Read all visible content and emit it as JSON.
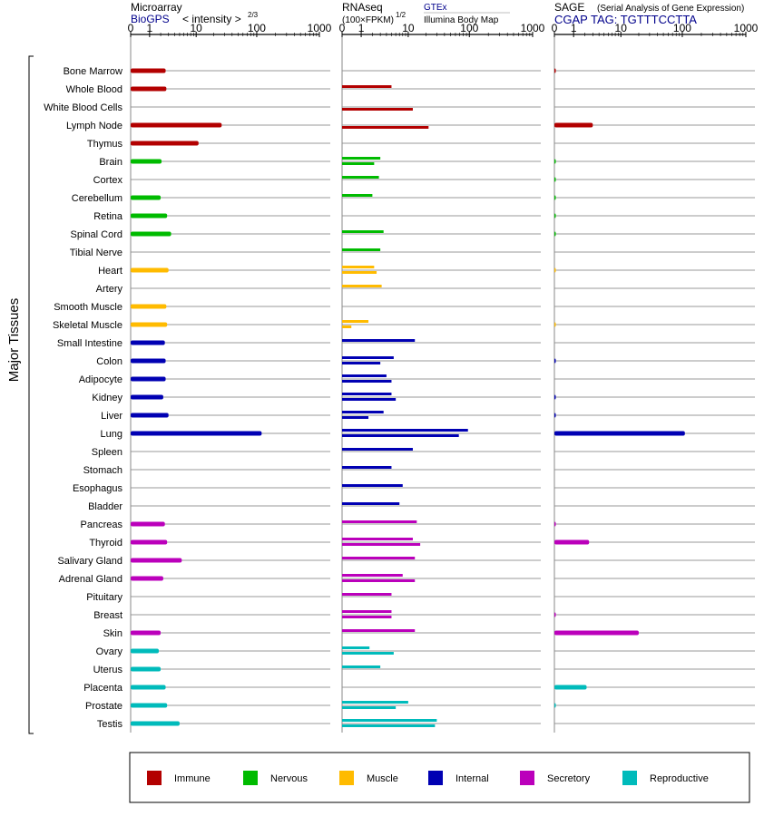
{
  "chart_data": {
    "type": "bar",
    "panel_headers": {
      "microarray": {
        "title": "Microarray",
        "source": "BioGPS",
        "scale": "< intensity >",
        "scale_exp": "2/3"
      },
      "rnaseq": {
        "title": "RNAseq",
        "scale": "(100×FPKM)",
        "scale_exp": "1/2",
        "source1": "GTEx",
        "source2": "Illumina Body Map"
      },
      "sage": {
        "title": "SAGE",
        "subtitle": "(Serial Analysis of Gene Expression)",
        "tag": "CGAP TAG: TGTTTCCTTA"
      }
    },
    "ticks": [
      "0",
      "1",
      "10",
      "100",
      "1000"
    ],
    "ylabel": "Major Tissues",
    "colors": {
      "Immune": "#b30000",
      "Nervous": "#00bb00",
      "Muscle": "#ffbb00",
      "Internal": "#0000b3",
      "Secretory": "#bb00bb",
      "Reproductive": "#00bbbb"
    },
    "legend": [
      "Immune",
      "Nervous",
      "Muscle",
      "Internal",
      "Secretory",
      "Reproductive"
    ],
    "tissues": [
      {
        "name": "Bone Marrow",
        "group": "Immune",
        "microarray": 2.6,
        "gtex": null,
        "ibm": null,
        "sage": 0.02
      },
      {
        "name": "Whole Blood",
        "group": "Immune",
        "microarray": 2.7,
        "gtex": 5,
        "ibm": null,
        "sage": null
      },
      {
        "name": "White Blood Cells",
        "group": "Immune",
        "microarray": null,
        "gtex": null,
        "ibm": 12,
        "sage": null
      },
      {
        "name": "Lymph Node",
        "group": "Immune",
        "microarray": 27,
        "gtex": null,
        "ibm": 22,
        "sage": 3
      },
      {
        "name": "Thymus",
        "group": "Immune",
        "microarray": 11,
        "gtex": null,
        "ibm": null,
        "sage": null
      },
      {
        "name": "Brain",
        "group": "Nervous",
        "microarray": 2.1,
        "gtex": 3,
        "ibm": 2.2,
        "sage": 0.01
      },
      {
        "name": "Cortex",
        "group": "Nervous",
        "microarray": null,
        "gtex": 2.8,
        "ibm": null,
        "sage": 0.01
      },
      {
        "name": "Cerebellum",
        "group": "Nervous",
        "microarray": 2.0,
        "gtex": 2.0,
        "ibm": null,
        "sage": 0.01
      },
      {
        "name": "Retina",
        "group": "Nervous",
        "microarray": 2.8,
        "gtex": null,
        "ibm": null,
        "sage": 0.01
      },
      {
        "name": "Spinal Cord",
        "group": "Nervous",
        "microarray": 3.4,
        "gtex": 3.5,
        "ibm": null,
        "sage": 0.01
      },
      {
        "name": "Tibial Nerve",
        "group": "Nervous",
        "microarray": null,
        "gtex": 3.0,
        "ibm": null,
        "sage": null
      },
      {
        "name": "Heart",
        "group": "Muscle",
        "microarray": 3.0,
        "gtex": 2.2,
        "ibm": 2.5,
        "sage": 0.01
      },
      {
        "name": "Artery",
        "group": "Muscle",
        "microarray": null,
        "gtex": 3.2,
        "ibm": null,
        "sage": null
      },
      {
        "name": "Smooth Muscle",
        "group": "Muscle",
        "microarray": 2.7,
        "gtex": null,
        "ibm": null,
        "sage": null
      },
      {
        "name": "Skeletal Muscle",
        "group": "Muscle",
        "microarray": 2.8,
        "gtex": 1.6,
        "ibm": 0.4,
        "sage": 0.01
      },
      {
        "name": "Small Intestine",
        "group": "Internal",
        "microarray": 2.5,
        "gtex": 13,
        "ibm": null,
        "sage": null
      },
      {
        "name": "Colon",
        "group": "Internal",
        "microarray": 2.6,
        "gtex": 5.5,
        "ibm": 3.0,
        "sage": 0.02
      },
      {
        "name": "Adipocyte",
        "group": "Internal",
        "microarray": 2.6,
        "gtex": 4.0,
        "ibm": 5.0,
        "sage": null
      },
      {
        "name": "Kidney",
        "group": "Internal",
        "microarray": 2.3,
        "gtex": 5.0,
        "ibm": 6.0,
        "sage": 0.02
      },
      {
        "name": "Liver",
        "group": "Internal",
        "microarray": 3.0,
        "gtex": 3.5,
        "ibm": 1.6,
        "sage": 0.02
      },
      {
        "name": "Lung",
        "group": "Internal",
        "microarray": 120,
        "gtex": 95,
        "ibm": 68,
        "sage": 110
      },
      {
        "name": "Spleen",
        "group": "Internal",
        "microarray": null,
        "gtex": 12,
        "ibm": null,
        "sage": null
      },
      {
        "name": "Stomach",
        "group": "Internal",
        "microarray": null,
        "gtex": 5.0,
        "ibm": null,
        "sage": null
      },
      {
        "name": "Esophagus",
        "group": "Internal",
        "microarray": null,
        "gtex": 8,
        "ibm": null,
        "sage": null
      },
      {
        "name": "Bladder",
        "group": "Internal",
        "microarray": null,
        "gtex": 7,
        "ibm": null,
        "sage": null
      },
      {
        "name": "Pancreas",
        "group": "Secretory",
        "microarray": 2.5,
        "gtex": 14,
        "ibm": null,
        "sage": 0.02
      },
      {
        "name": "Thyroid",
        "group": "Secretory",
        "microarray": 2.8,
        "gtex": 12,
        "ibm": 16,
        "sage": 2.5
      },
      {
        "name": "Salivary Gland",
        "group": "Secretory",
        "microarray": 5.5,
        "gtex": 13,
        "ibm": null,
        "sage": null
      },
      {
        "name": "Adrenal Gland",
        "group": "Secretory",
        "microarray": 2.3,
        "gtex": 8,
        "ibm": 13,
        "sage": null
      },
      {
        "name": "Pituitary",
        "group": "Secretory",
        "microarray": null,
        "gtex": 5.0,
        "ibm": null,
        "sage": null
      },
      {
        "name": "Breast",
        "group": "Secretory",
        "microarray": null,
        "gtex": 5.0,
        "ibm": 5.0,
        "sage": 0.02
      },
      {
        "name": "Skin",
        "group": "Secretory",
        "microarray": 2.0,
        "gtex": 13,
        "ibm": null,
        "sage": 20
      },
      {
        "name": "Ovary",
        "group": "Reproductive",
        "microarray": 1.8,
        "gtex": 1.7,
        "ibm": 5.5,
        "sage": null
      },
      {
        "name": "Uterus",
        "group": "Reproductive",
        "microarray": 2.0,
        "gtex": 3.0,
        "ibm": null,
        "sage": null
      },
      {
        "name": "Placenta",
        "group": "Reproductive",
        "microarray": 2.6,
        "gtex": null,
        "ibm": null,
        "sage": 2.2
      },
      {
        "name": "Prostate",
        "group": "Reproductive",
        "microarray": 2.8,
        "gtex": 10,
        "ibm": 6,
        "sage": 0.01
      },
      {
        "name": "Testis",
        "group": "Reproductive",
        "microarray": 5.0,
        "gtex": 30,
        "ibm": 28,
        "sage": null
      }
    ]
  }
}
